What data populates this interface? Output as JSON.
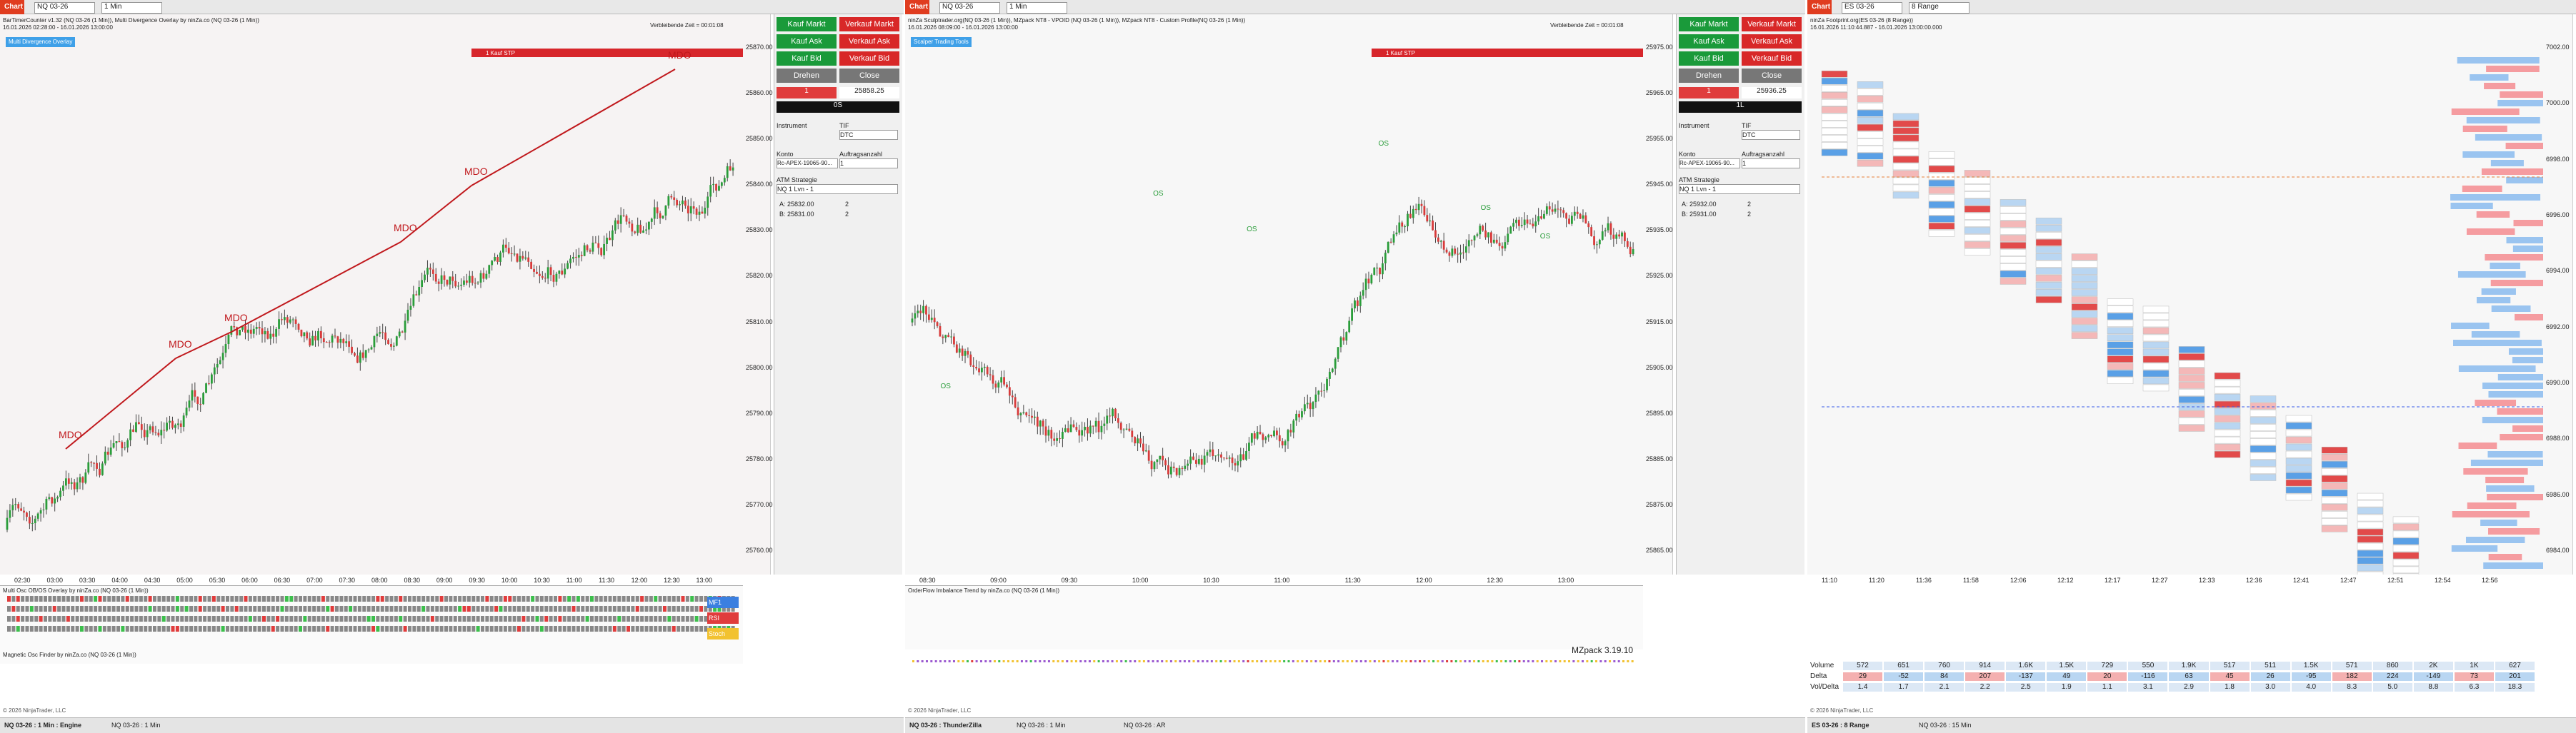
{
  "panels": [
    {
      "toolbar": {
        "tab": "Chart",
        "instrument": "NQ 03-26",
        "interval": "1 Min"
      },
      "title": "BarTimerCounter v1.32 (NQ 03-26 (1 Min)), Multi Divergence Overlay by ninZa.co (NQ 03-26 (1 Min))",
      "subtitle": "16.01.2026 02:28:00 - 16.01.2026 13:00:00",
      "corner": "Verbleibende Zeit = 00:01:08",
      "badge": "Multi Divergence Overlay",
      "order_line": "1 Kauf STP",
      "price_labels": [
        "25870.00",
        "25860.00",
        "25850.00",
        "25840.00",
        "25830.00",
        "25820.00",
        "25810.00",
        "25800.00",
        "25790.00",
        "25780.00",
        "25770.00",
        "25760.00"
      ],
      "time_labels": [
        "02:30",
        "03:00",
        "03:30",
        "04:00",
        "04:30",
        "05:00",
        "05:30",
        "06:00",
        "06:30",
        "07:00",
        "07:30",
        "08:00",
        "08:30",
        "09:00",
        "09:30",
        "10:00",
        "10:30",
        "11:00",
        "11:30",
        "12:00",
        "12:30",
        "13:00"
      ],
      "annotations": [
        "MDO",
        "MDO",
        "MDO",
        "MDO",
        "MDO",
        "MDO"
      ],
      "indicator_title": "Multi Osc OB/OS Overlay by ninZa.co (NQ 03-26 (1 Min))",
      "indicator2_title": "Magnetic Osc Finder by ninZa.co (NQ 03-26 (1 Min))",
      "side_tags": [
        "MF1",
        "RSI",
        "Stoch"
      ],
      "tabs": [
        "NQ 03-26 : 1 Min : Engine",
        "NQ 03-26 : 1 Min"
      ],
      "footer": "© 2026 NinjaTrader, LLC",
      "order_panel": {
        "buttons": [
          "Kauf Markt",
          "Verkauf Markt",
          "Kauf Ask",
          "Verkauf Ask",
          "Kauf Bid",
          "Verkauf Bid",
          "Drehen",
          "Close"
        ],
        "qty": "1",
        "price": "25858.25",
        "position": "0S",
        "fields": [
          "Instrument",
          "TIF",
          "Konto",
          "Auftragsanzahl",
          "ATM Strategie"
        ],
        "tif": "DTC",
        "account": "Rc-APEX-19065-90...",
        "count": "1",
        "atm": "NQ 1 Lvn - 1",
        "lines": [
          "A: 25832.00",
          "B: 25831.00"
        ],
        "line_qty": [
          "2",
          "2"
        ]
      }
    },
    {
      "toolbar": {
        "tab": "Chart",
        "instrument": "NQ 03-26",
        "interval": "1 Min"
      },
      "title": "ninZa Sculptrader.org(NQ 03-26 (1 Min)), MZpack NT8 - VPOID (NQ 03-26 (1 Min)), MZpack NT8 - Custom Profile(NQ 03-26 (1 Min))",
      "subtitle": "16.01.2026 08:09:00 - 16.01.2026 13:00:00",
      "corner": "Verbleibende Zeit = 00:01:08",
      "badge": "Scalper Trading Tools",
      "order_line": "1 Kauf STP",
      "price_labels": [
        "25975.00",
        "25965.00",
        "25955.00",
        "25945.00",
        "25935.00",
        "25925.00",
        "25915.00",
        "25905.00",
        "25895.00",
        "25885.00",
        "25875.00",
        "25865.00"
      ],
      "time_labels": [
        "08:30",
        "09:00",
        "09:30",
        "10:00",
        "10:30",
        "11:00",
        "11:30",
        "12:00",
        "12:30",
        "13:00"
      ],
      "annotations": [
        "OS",
        "OS",
        "OS",
        "OS",
        "OS",
        "OS"
      ],
      "indicator_title": "OrderFlow Imbalance Trend by ninZa.co (NQ 03-26 (1 Min))",
      "watermark": "MZpack 3.19.10",
      "tabs": [
        "NQ 03-26 : ThunderZilla",
        "NQ 03-26 : 1 Min",
        "NQ 03-26 : AR"
      ],
      "footer": "© 2026 NinjaTrader, LLC",
      "order_panel": {
        "buttons": [
          "Kauf Markt",
          "Verkauf Markt",
          "Kauf Ask",
          "Verkauf Ask",
          "Kauf Bid",
          "Verkauf Bid",
          "Drehen",
          "Close"
        ],
        "qty": "1",
        "price": "25936.25",
        "position": "1L",
        "fields": [
          "Instrument",
          "TIF",
          "Konto",
          "Auftragsanzahl",
          "ATM Strategie"
        ],
        "tif": "DTC",
        "account": "Rc-APEX-19065-90...",
        "count": "1",
        "atm": "NQ 1 Lvn - 1",
        "lines": [
          "A: 25932.00",
          "B: 25931.00"
        ],
        "line_qty": [
          "2",
          "2"
        ]
      }
    },
    {
      "toolbar": {
        "tab": "Chart",
        "instrument": "ES 03-26",
        "interval": "8 Range"
      },
      "title": "ninZa Footprint.org(ES 03-26 (8 Range))",
      "subtitle": "16.01.2026 11:10:44.887 - 16.01.2026 13:00:00.000",
      "price_labels": [
        "7002.00",
        "7000.00",
        "6998.00",
        "6996.00",
        "6994.00",
        "6992.00",
        "6990.00",
        "6988.00",
        "6986.00",
        "6984.00"
      ],
      "time_labels": [
        "11:10",
        "11:20",
        "11:36",
        "11:58",
        "12:06",
        "12:12",
        "12:17",
        "12:27",
        "12:33",
        "12:36",
        "12:41",
        "12:47",
        "12:51",
        "12:54",
        "12:56"
      ],
      "table": {
        "row_labels": [
          "Volume",
          "Delta",
          "Vol/Delta"
        ],
        "rows": [
          [
            "572",
            "651",
            "760",
            "914",
            "1.6K",
            "1.5K",
            "729",
            "550",
            "1.9K",
            "517",
            "511",
            "1.5K",
            "571",
            "860",
            "2K",
            "1K",
            "627"
          ],
          [
            "29",
            "-52",
            "84",
            "207",
            "-137",
            "49",
            "20",
            "-116",
            "63",
            "45",
            "26",
            "-95",
            "182",
            "224",
            "-149",
            "73",
            "201"
          ],
          [
            "1.4",
            "1.7",
            "2.1",
            "2.2",
            "2.5",
            "1.9",
            "1.1",
            "3.1",
            "2.9",
            "1.8",
            "3.0",
            "4.0",
            "8.3",
            "5.0",
            "8.8",
            "6.3",
            "18.3"
          ]
        ]
      },
      "tabs": [
        "ES 03-26 : 8 Range",
        "NQ 03-26 : 15 Min"
      ],
      "footer": "© 2026 NinjaTrader, LLC"
    }
  ]
}
